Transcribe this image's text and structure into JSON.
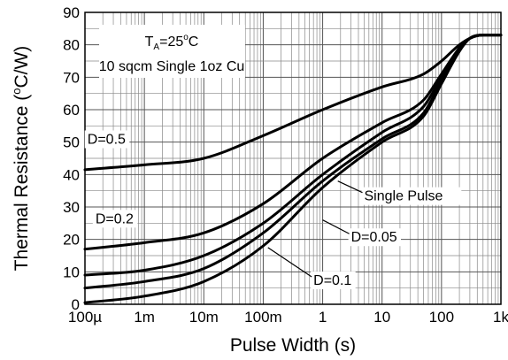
{
  "chart_data": {
    "type": "line",
    "title": "",
    "xlabel": "Pulse Width (s)",
    "ylabel": "Thermal Resistance (°C/W)",
    "ylabel_parts": {
      "pre": "Thermal Resistance (",
      "sup": "o",
      "post": "C/W)"
    },
    "xscale": "log",
    "xlim": [
      0.0001,
      1000
    ],
    "ylim": [
      0,
      90
    ],
    "x_tick_values": [
      0.0001,
      0.001,
      0.01,
      0.1,
      1,
      10,
      100,
      1000
    ],
    "x_tick_labels": [
      "100µ",
      "1m",
      "10m",
      "100m",
      "1",
      "10",
      "100",
      "1k"
    ],
    "y_tick_values": [
      0,
      10,
      20,
      30,
      40,
      50,
      60,
      70,
      80,
      90
    ],
    "y_tick_labels": [
      "0",
      "10",
      "20",
      "30",
      "40",
      "50",
      "60",
      "70",
      "80",
      "90"
    ],
    "grid": true,
    "conditions": {
      "temp_prefix": "T",
      "temp_sub": "A",
      "temp_value": "=25",
      "temp_deg": "o",
      "temp_unit": "C",
      "board": "10 sqcm Single 1oz Cu"
    },
    "series": [
      {
        "name": "D=0.5",
        "x": [
          0.0001,
          0.001,
          0.01,
          0.1,
          1,
          10,
          50,
          100,
          200,
          300,
          500,
          1000
        ],
        "y": [
          41.5,
          43,
          45,
          52,
          60,
          67,
          71,
          75,
          80,
          82,
          83,
          83
        ]
      },
      {
        "name": "D=0.2",
        "x": [
          0.0001,
          0.001,
          0.01,
          0.1,
          1,
          10,
          50,
          100,
          200,
          300,
          500,
          1000
        ],
        "y": [
          17,
          19,
          22,
          31,
          45,
          56,
          63,
          71,
          79,
          82,
          83,
          83
        ]
      },
      {
        "name": "D=0.1",
        "x": [
          0.0001,
          0.001,
          0.01,
          0.1,
          1,
          10,
          50,
          100,
          200,
          300,
          500,
          1000
        ],
        "y": [
          9,
          10.5,
          15,
          25,
          40,
          53,
          61,
          70,
          79,
          82,
          83,
          83
        ]
      },
      {
        "name": "D=0.05",
        "x": [
          0.0001,
          0.001,
          0.01,
          0.1,
          1,
          10,
          50,
          100,
          200,
          300,
          500,
          1000
        ],
        "y": [
          5,
          7,
          11,
          22,
          38,
          51,
          59,
          69,
          79,
          82,
          83,
          83
        ]
      },
      {
        "name": "Single Pulse",
        "x": [
          0.0001,
          0.001,
          0.01,
          0.1,
          1,
          10,
          50,
          100,
          200,
          300,
          500,
          1000
        ],
        "y": [
          0.5,
          2.5,
          7,
          18,
          36,
          50,
          58,
          68,
          78,
          82,
          83,
          83
        ]
      }
    ],
    "annotations": [
      {
        "text": "D=0.5",
        "series": "D=0.5",
        "x": 0.00011,
        "y": 49.5,
        "pointer": false
      },
      {
        "text": "D=0.2",
        "series": "D=0.2",
        "x": 0.00015,
        "y": 25,
        "pointer": false
      },
      {
        "text": "Single Pulse",
        "series": "Single Pulse",
        "x": 5,
        "y": 32,
        "pointer": true,
        "tip_x": 1.8,
        "tip_y": 38
      },
      {
        "text": "D=0.05",
        "series": "D=0.05",
        "x": 3,
        "y": 19.3,
        "pointer": true,
        "tip_x": 1.0,
        "tip_y": 26
      },
      {
        "text": "D=0.1",
        "series": "D=0.1",
        "x": 0.7,
        "y": 6,
        "pointer": true,
        "tip_x": 0.12,
        "tip_y": 17.5
      }
    ]
  }
}
